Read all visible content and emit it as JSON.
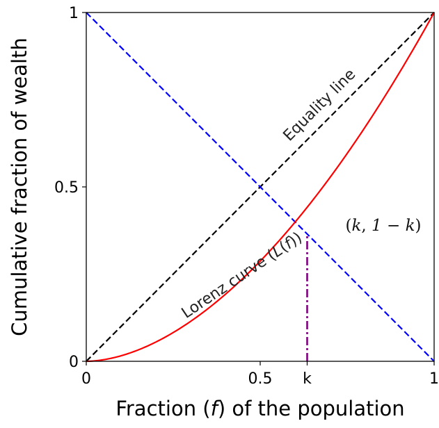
{
  "chart_data": {
    "type": "line",
    "xlabel": "Fraction (f) of the population",
    "ylabel": "Cumulative fraction of wealth",
    "xlim": [
      0,
      1
    ],
    "ylim": [
      0,
      1
    ],
    "x_ticks": [
      {
        "value": 0,
        "label": "0"
      },
      {
        "value": 0.5,
        "label": "0.5"
      },
      {
        "value": 0.635,
        "label": "k"
      },
      {
        "value": 1,
        "label": "1"
      }
    ],
    "y_ticks": [
      {
        "value": 0,
        "label": "0"
      },
      {
        "value": 0.5,
        "label": "0.5"
      },
      {
        "value": 1,
        "label": "1"
      }
    ],
    "grid": false,
    "series": [
      {
        "name": "Equality line",
        "color": "#000000",
        "style": "dashed",
        "points": [
          [
            0,
            0
          ],
          [
            1,
            1
          ]
        ]
      },
      {
        "name": "",
        "color": "#0000ff",
        "style": "dashed",
        "points": [
          [
            0,
            1
          ],
          [
            1,
            0
          ]
        ]
      },
      {
        "name": "Lorenz curve (L(f))",
        "color": "#ff0000",
        "style": "solid",
        "function": "f^1.8",
        "x_range": [
          0,
          1
        ]
      },
      {
        "name": "",
        "color": "#800080",
        "style": "dashdot",
        "points": [
          [
            0.635,
            0
          ],
          [
            0.635,
            0.365
          ]
        ]
      }
    ],
    "annotations": [
      {
        "text": "Equality line",
        "x": 0.68,
        "y": 0.725,
        "rotation_deg": -45
      },
      {
        "text": "Lorenz curve (L(f))",
        "x": 0.455,
        "y": 0.235,
        "rotation_deg": -34
      },
      {
        "text": "(k, 1 − k)",
        "x": 0.745,
        "y": 0.375
      }
    ],
    "labels": {
      "k": "k",
      "one_minus_k": "1 − k",
      "lorenz_prefix": "Lorenz curve (",
      "lorenz_func": "L",
      "lorenz_arg": "f",
      "lorenz_suffix": ")",
      "xlabel_prefix": "Fraction (",
      "xlabel_var": "f",
      "xlabel_suffix": ") of the population"
    }
  }
}
